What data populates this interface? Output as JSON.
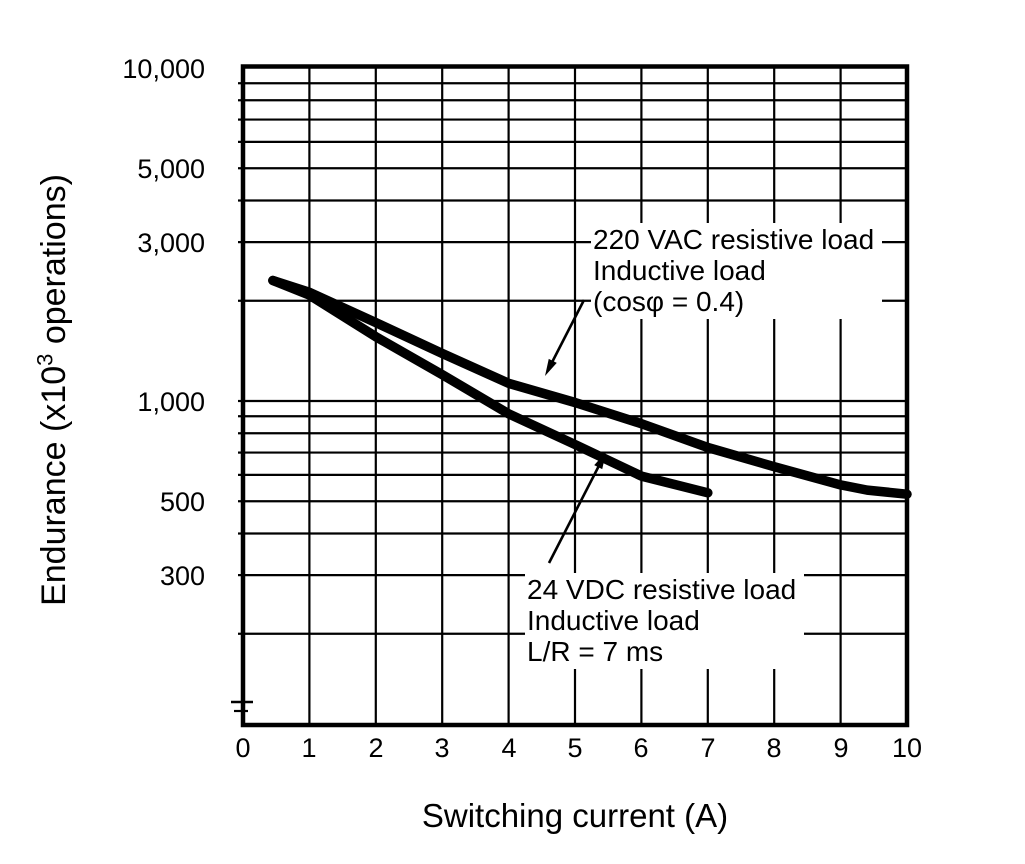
{
  "colors": {
    "ink": "#000000",
    "background": "#ffffff"
  },
  "chart_data": {
    "type": "line",
    "title": "",
    "xlabel": "Switching current (A)",
    "ylabel": "Endurance (x10³ operations)",
    "ylabel_parts": {
      "pre": "Endurance (x10",
      "sup": "3",
      "post": " operations)"
    },
    "grid": "on",
    "x_axis": {
      "min": 0,
      "max": 10,
      "ticks": [
        0,
        1,
        2,
        3,
        4,
        5,
        6,
        7,
        8,
        9,
        10
      ],
      "gridline_values": [
        1,
        2,
        3,
        4,
        5,
        6,
        7,
        8,
        9
      ]
    },
    "y_axis": {
      "scale": "log",
      "min": 105,
      "max": 10000,
      "tick_labels": [
        {
          "label": "10,000",
          "value": 10000
        },
        {
          "label": "5,000",
          "value": 5000
        },
        {
          "label": "3,000",
          "value": 3000
        },
        {
          "label": "1,000",
          "value": 1000
        },
        {
          "label": "500",
          "value": 500
        },
        {
          "label": "300",
          "value": 300
        }
      ],
      "gridline_values": [
        200,
        300,
        400,
        500,
        600,
        700,
        800,
        900,
        1000,
        2000,
        3000,
        4000,
        5000,
        6000,
        7000,
        8000,
        9000
      ]
    },
    "series": [
      {
        "name": "220 VAC resistive load / Inductive load (cosφ = 0.4)",
        "points": [
          [
            0.45,
            2300
          ],
          [
            1,
            2120
          ],
          [
            2,
            1720
          ],
          [
            3,
            1390
          ],
          [
            4,
            1130
          ],
          [
            5,
            990
          ],
          [
            6,
            855
          ],
          [
            7,
            725
          ],
          [
            8,
            635
          ],
          [
            9,
            560
          ],
          [
            9.4,
            540
          ],
          [
            10,
            525
          ]
        ]
      },
      {
        "name": "24 VDC resistive load / Inductive load L/R = 7 ms",
        "points": [
          [
            0.45,
            2300
          ],
          [
            1,
            2080
          ],
          [
            2,
            1560
          ],
          [
            3,
            1200
          ],
          [
            4,
            915
          ],
          [
            5,
            740
          ],
          [
            6,
            595
          ],
          [
            7,
            530
          ]
        ]
      }
    ],
    "annotations": [
      {
        "lines": [
          "220 VAC resistive load",
          "Inductive load",
          "(cosφ = 0.4)"
        ]
      },
      {
        "lines": [
          "24 VDC resistive load",
          "Inductive load",
          "L/R = 7 ms"
        ]
      }
    ]
  }
}
